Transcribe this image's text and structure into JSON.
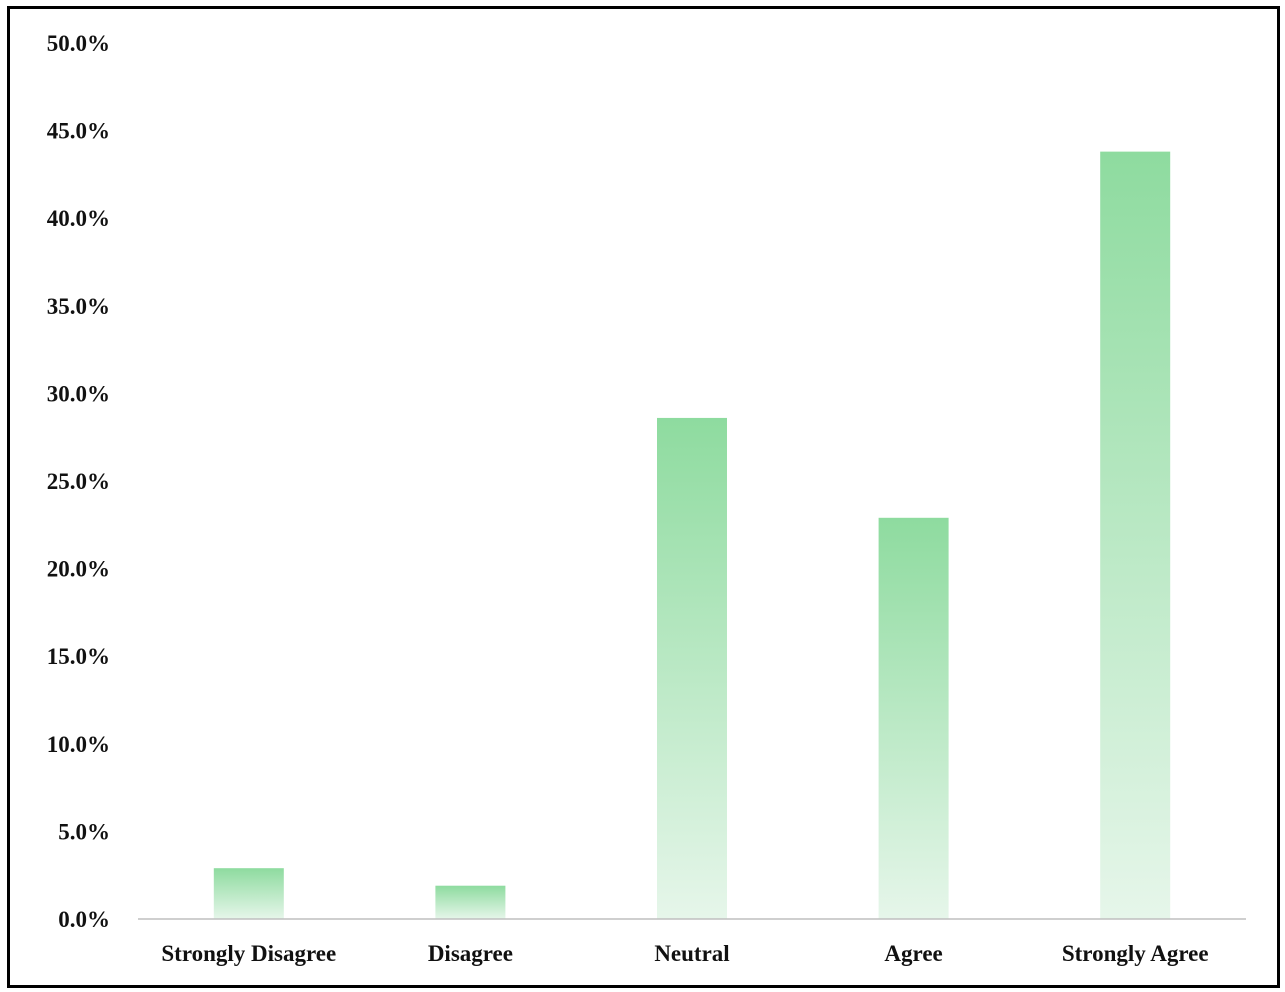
{
  "chart_data": {
    "type": "bar",
    "title": "",
    "xlabel": "",
    "ylabel": "",
    "categories": [
      "Strongly Disagree",
      "Disagree",
      "Neutral",
      "Agree",
      "Strongly Agree"
    ],
    "values": [
      2.9,
      1.9,
      28.6,
      22.9,
      43.8
    ],
    "value_unit": "%",
    "ylim": [
      0,
      50
    ],
    "y_ticks": [
      "0.0%",
      "5.0%",
      "10.0%",
      "15.0%",
      "20.0%",
      "25.0%",
      "30.0%",
      "35.0%",
      "40.0%",
      "45.0%",
      "50.0%"
    ],
    "grid": false,
    "legend": "none",
    "bar_color_top": "#8edb9f",
    "bar_color_bottom": "#e6f6ea",
    "axis_color": "#bfbfbf"
  }
}
